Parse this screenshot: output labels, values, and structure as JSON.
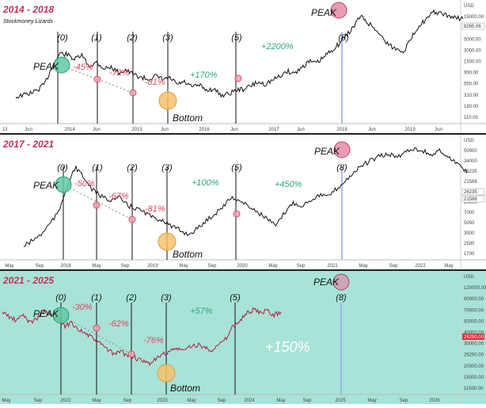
{
  "watermark": "Stockmoney Lizards",
  "chart_data": [
    {
      "type": "line",
      "title": "2014 - 2018",
      "x_ticks": [
        "13",
        "Jun",
        "2014",
        "Jun",
        "2015",
        "Jun",
        "2016",
        "Jun",
        "2017",
        "Jun",
        "2018",
        "Jun",
        "2019",
        "Jun"
      ],
      "y_ticks": [
        "USD",
        "15000.00",
        "8265.06",
        "5000.00",
        "3000.00",
        "1500.00",
        "950.00",
        "550.00",
        "310.00",
        "190.00",
        "110.00"
      ],
      "price_label": "8265.06",
      "cycle_labels": [
        "(0)",
        "(1)",
        "(2)",
        "(3)",
        "(5)",
        "(8)"
      ],
      "annotations": [
        {
          "text": "PEAK",
          "color": "#111111"
        },
        {
          "text": "-45%",
          "color": "#e0475e"
        },
        {
          "text": "-72%",
          "color": "#e0475e"
        },
        {
          "text": "-81%",
          "color": "#e0475e"
        },
        {
          "text": "+170%",
          "color": "#2eaa7a"
        },
        {
          "text": "+2200%",
          "color": "#2eaa7a"
        },
        {
          "text": "PEAK",
          "color": "#111111"
        },
        {
          "text": "Bottom",
          "color": "#111111"
        }
      ],
      "series": [
        {
          "values": [
            2.6,
            2.8,
            3.0,
            3.3,
            4.0,
            5.8,
            7.0,
            6.9,
            6.4,
            6.8,
            5.7,
            6.1,
            5.5,
            5.6,
            5.1,
            5.3,
            4.9,
            4.6,
            4.4,
            4.7,
            4.4,
            4.5,
            3.9,
            4.1,
            3.6,
            3.8,
            3.3,
            3.4,
            2.8,
            2.9,
            3.3,
            3.4,
            3.7,
            4.1,
            3.9,
            4.3,
            4.7,
            5.2,
            5.0,
            5.6,
            6.2,
            6.0,
            6.6,
            7.3,
            7.9,
            8.8,
            9.6,
            10.8,
            10.1,
            9.5,
            8.6,
            7.8,
            7.4,
            7.3,
            8.6,
            9.9,
            10.4,
            11.2,
            11.0,
            10.8,
            10.6,
            10.5
          ]
        }
      ]
    },
    {
      "type": "line",
      "title": "2017 - 2021",
      "x_ticks": [
        "May",
        "Sep",
        "2018",
        "May",
        "Sep",
        "2019",
        "May",
        "Sep",
        "2020",
        "May",
        "Sep",
        "2021",
        "May",
        "Sep",
        "2022",
        "May"
      ],
      "y_ticks": [
        "USD",
        "50000",
        "34000",
        "26235",
        "21588",
        "16000",
        "10000",
        "7000",
        "5000",
        "3500",
        "2500",
        "1700"
      ],
      "price_label": "26235",
      "price_label_2": "21588",
      "cycle_labels": [
        "(0)",
        "(1)",
        "(2)",
        "(3)",
        "(5)",
        "(8)"
      ],
      "annotations": [
        {
          "text": "PEAK",
          "color": "#111111"
        },
        {
          "text": "-50%",
          "color": "#e0475e"
        },
        {
          "text": "-67%",
          "color": "#e0475e"
        },
        {
          "text": "-81%",
          "color": "#e0475e"
        },
        {
          "text": "+100%",
          "color": "#2eaa7a"
        },
        {
          "text": "+450%",
          "color": "#2eaa7a"
        },
        {
          "text": "PEAK",
          "color": "#111111"
        },
        {
          "text": "Bottom",
          "color": "#111111"
        }
      ],
      "series": [
        {
          "values": [
            1.2,
            1.8,
            2.4,
            3.5,
            4.6,
            7.4,
            9.2,
            8.0,
            6.8,
            6.2,
            5.9,
            6.1,
            5.3,
            5.0,
            4.6,
            4.0,
            3.9,
            3.2,
            2.8,
            2.4,
            3.0,
            3.8,
            4.5,
            5.3,
            6.2,
            5.7,
            5.2,
            4.6,
            4.0,
            3.2,
            4.6,
            5.6,
            5.3,
            5.9,
            6.4,
            6.2,
            7.0,
            7.8,
            8.7,
            9.4,
            9.9,
            10.3,
            10.5,
            10.2,
            10.8,
            11.1,
            10.8,
            10.4,
            10.9,
            10.1,
            9.6,
            8.6
          ]
        }
      ]
    },
    {
      "type": "line",
      "title": "2021 - 2025",
      "x_ticks": [
        "May",
        "Sep",
        "2022",
        "May",
        "Sep",
        "2023",
        "May",
        "Sep",
        "2024",
        "May",
        "Sep",
        "2025",
        "May",
        "Sep",
        "2026"
      ],
      "y_ticks": [
        "USD",
        "120000.00",
        "90000.00",
        "70000.00",
        "50000.00",
        "40000.00",
        "30000.00",
        "26290.00",
        "20000.00",
        "15000.00",
        "11500.00"
      ],
      "price_label": "26290.00",
      "cycle_labels": [
        "(0)",
        "(1)",
        "(2)",
        "(3)",
        "(5)",
        "(8)"
      ],
      "annotations": [
        {
          "text": "PEAK",
          "color": "#111111"
        },
        {
          "text": "-30%",
          "color": "#e0475e"
        },
        {
          "text": "-62%",
          "color": "#e0475e"
        },
        {
          "text": "-76%",
          "color": "#e0475e"
        },
        {
          "text": "+57%",
          "color": "#2eaa7a"
        },
        {
          "text": "+150%",
          "color": "#ffffff"
        },
        {
          "text": "PEAK",
          "color": "#111111"
        },
        {
          "text": "Bottom",
          "color": "#111111"
        }
      ],
      "series": [
        {
          "values": [
            6.9,
            6.4,
            6.0,
            6.6,
            5.8,
            6.3,
            7.0,
            6.5,
            6.2,
            5.5,
            5.8,
            5.1,
            4.7,
            4.2,
            3.7,
            3.2,
            2.6,
            2.9,
            2.5,
            2.3,
            1.9,
            1.7,
            2.1,
            2.6,
            2.9,
            3.2,
            3.0,
            3.4,
            3.6,
            3.3,
            3.1,
            3.5,
            4.1,
            5.3,
            6.0,
            6.7,
            7.1,
            6.8,
            7.0,
            6.6,
            6.9
          ]
        }
      ]
    }
  ]
}
